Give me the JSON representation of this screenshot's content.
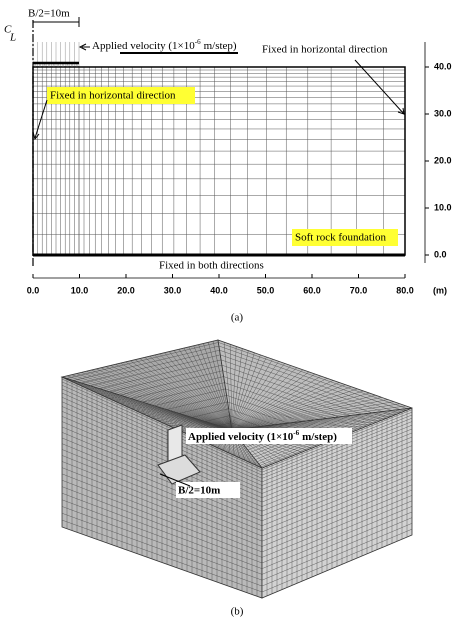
{
  "panel_a": {
    "caption": "(a)",
    "half_width": "B/2=10m",
    "centerline": [
      "C",
      "L"
    ],
    "applied_velocity": {
      "text": "Applied velocity (1×10",
      "exponent": "-6",
      "unit": "m/step)"
    },
    "fixed_right": "Fixed in horizontal direction",
    "fixed_left": "Fixed in horizontal direction",
    "foundation": "Soft rock foundation",
    "fixed_bottom": "Fixed in both directions",
    "x_ticks": [
      "0.0",
      "10.0",
      "20.0",
      "30.0",
      "40.0",
      "50.0",
      "60.0",
      "70.0",
      "80.0"
    ],
    "x_unit": "(m)",
    "y_ticks": [
      "0.0",
      "10.0",
      "20.0",
      "30.0",
      "40.0"
    ]
  },
  "panel_b": {
    "caption": "(b)",
    "applied_velocity": {
      "text": "Applied velocity (1×10",
      "exponent": "-6",
      "unit": "m/step)"
    },
    "half_width": "B/2=10m"
  }
}
